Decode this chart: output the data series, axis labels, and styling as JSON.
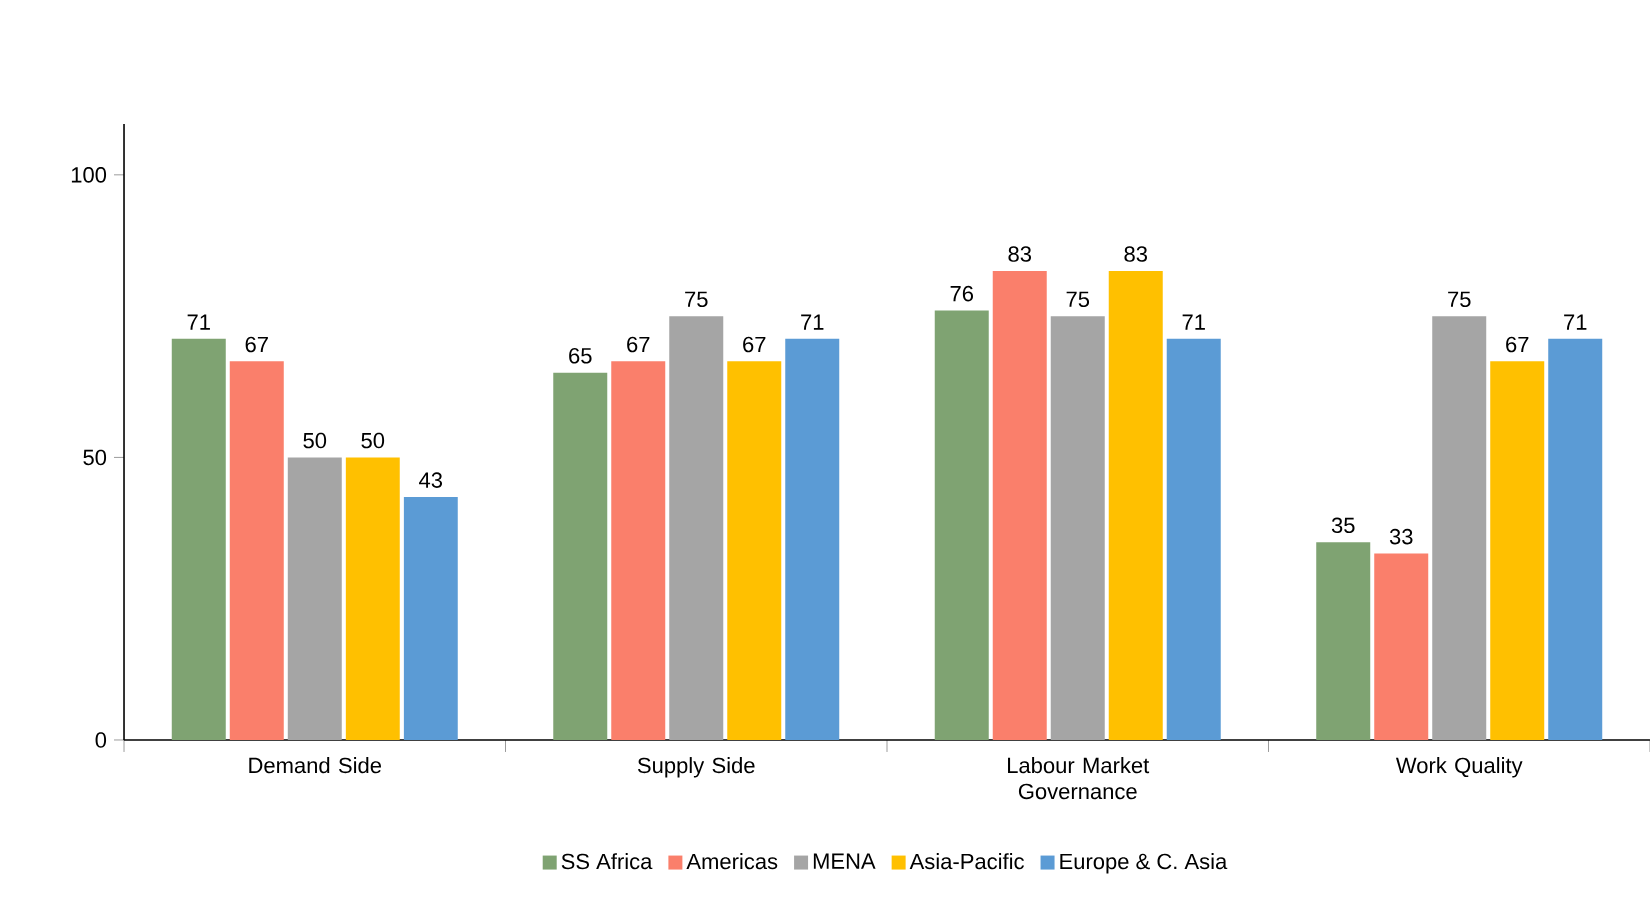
{
  "chart_data": {
    "type": "bar",
    "categories": [
      "Demand Side",
      "Supply Side",
      "Labour Market Governance",
      "Work Quality"
    ],
    "series": [
      {
        "name": "SS Africa",
        "color": "#7fa372",
        "values": [
          71,
          65,
          76,
          35
        ]
      },
      {
        "name": "Americas",
        "color": "#fa7f6b",
        "values": [
          67,
          67,
          83,
          33
        ]
      },
      {
        "name": "MENA",
        "color": "#a5a5a5",
        "values": [
          50,
          75,
          75,
          75
        ]
      },
      {
        "name": "Asia-Pacific",
        "color": "#ffc000",
        "values": [
          50,
          67,
          83,
          67
        ]
      },
      {
        "name": "Europe & C. Asia",
        "color": "#5b9bd5",
        "values": [
          43,
          71,
          71,
          71
        ]
      }
    ],
    "ylim": [
      0,
      109
    ],
    "yticks": [
      0,
      50,
      100
    ],
    "data_labels": true,
    "legend": "bottom"
  }
}
